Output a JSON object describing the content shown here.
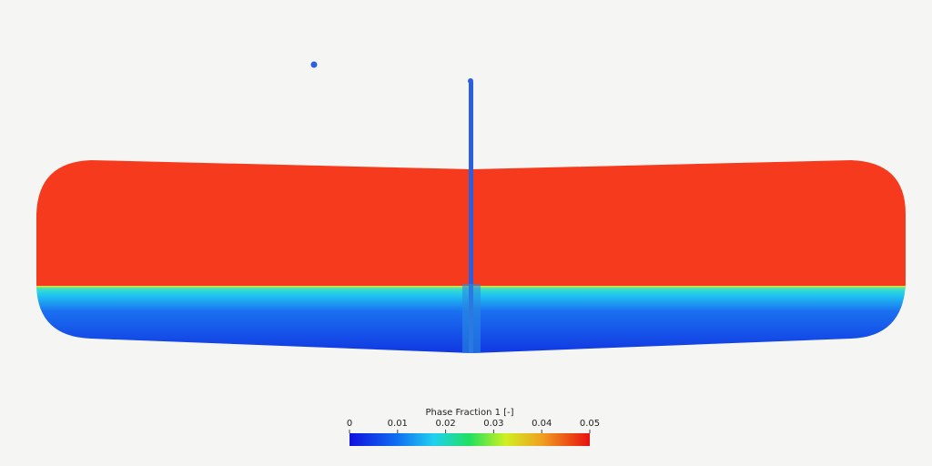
{
  "colorbar": {
    "title": "Phase Fraction 1 [-]",
    "range": [
      0,
      0.05
    ],
    "ticks": [
      0,
      0.01,
      0.02,
      0.03,
      0.04,
      0.05
    ]
  }
}
